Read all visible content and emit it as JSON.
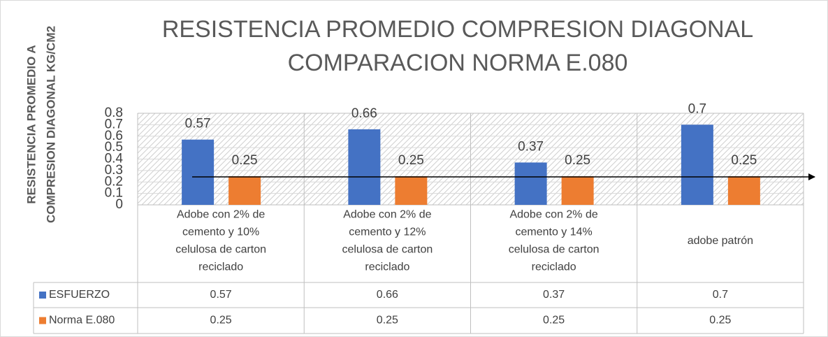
{
  "chart_data": {
    "type": "bar",
    "title": [
      "RESISTENCIA  PROMEDIO COMPRESION DIAGONAL",
      "COMPARACION NORMA E.080"
    ],
    "y_label": [
      "RESISTENCIA PROMEDIO A",
      "COMPRESION DIAGONAL KG/CM2"
    ],
    "categories": [
      "Adobe con 2% de cemento y 10% celulosa de carton reciclado",
      "Adobe con 2% de cemento y 12% celulosa de carton reciclado",
      "Adobe con 2% de cemento y 14% celulosa de carton reciclado",
      "adobe patrón"
    ],
    "series": [
      {
        "name": "ESFUERZO",
        "color": "#4472c4",
        "values": [
          0.57,
          0.66,
          0.37,
          0.7
        ]
      },
      {
        "name": "Norma E.080",
        "color": "#ed7d31",
        "values": [
          0.25,
          0.25,
          0.25,
          0.25
        ]
      }
    ],
    "ylim": [
      0,
      0.8
    ],
    "yticks": [
      0,
      0.1,
      0.2,
      0.3,
      0.4,
      0.5,
      0.6,
      0.7,
      0.8
    ],
    "data_table": true
  }
}
